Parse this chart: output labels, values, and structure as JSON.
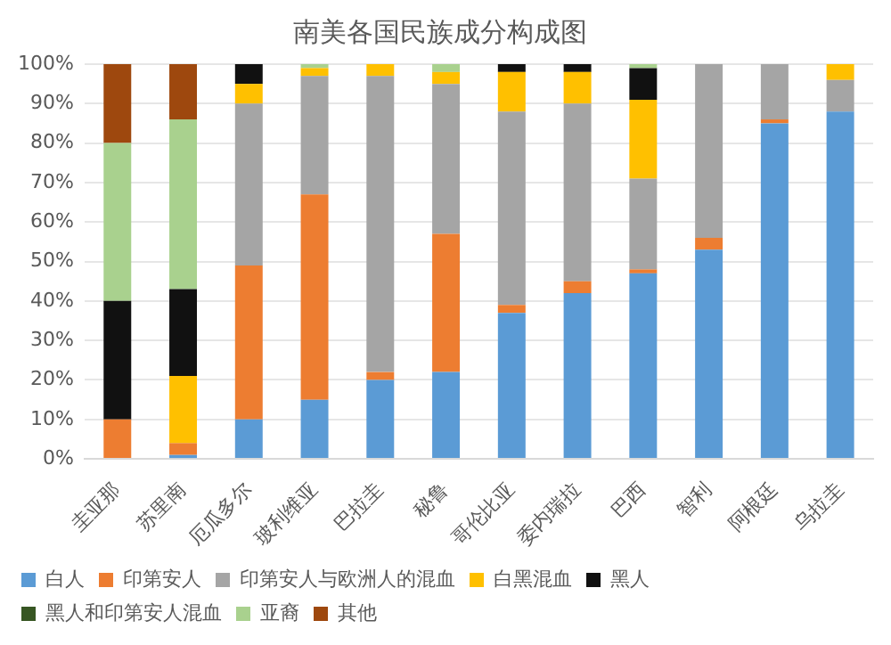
{
  "chart_data": {
    "type": "bar",
    "stacked": true,
    "title": "南美各国民族成分构成图",
    "categories": [
      "圭亚那",
      "苏里南",
      "厄瓜多尔",
      "玻利维亚",
      "巴拉圭",
      "秘鲁",
      "哥伦比亚",
      "委内瑞拉",
      "巴西",
      "智利",
      "阿根廷",
      "乌拉圭"
    ],
    "series": [
      {
        "name": "白人",
        "color": "#5b9bd5",
        "values": [
          0,
          1,
          10,
          15,
          20,
          22,
          37,
          42,
          47,
          53,
          85,
          88
        ]
      },
      {
        "name": "印第安人",
        "color": "#ed7d31",
        "values": [
          10,
          3,
          39,
          52,
          2,
          35,
          2,
          3,
          1,
          3,
          1,
          0
        ]
      },
      {
        "name": "印第安人与欧洲人的混血",
        "color": "#a5a5a5",
        "values": [
          0,
          0,
          41,
          30,
          75,
          38,
          49,
          45,
          23,
          44,
          14,
          8
        ]
      },
      {
        "name": "白黑混血",
        "color": "#ffc000",
        "values": [
          0,
          17,
          5,
          2,
          3,
          3,
          10,
          8,
          20,
          0,
          0,
          4
        ]
      },
      {
        "name": "黑人",
        "color": "#111111",
        "values": [
          30,
          22,
          5,
          0,
          0,
          0,
          2,
          2,
          8,
          0,
          0,
          0
        ]
      },
      {
        "name": "黑人和印第安人混血",
        "color": "#375623",
        "values": [
          0,
          0,
          0,
          0,
          0,
          0,
          0,
          0,
          0,
          0,
          0,
          0
        ]
      },
      {
        "name": "亚裔",
        "color": "#a9d18e",
        "values": [
          40,
          43,
          0,
          1,
          0,
          2,
          0,
          0,
          1,
          0,
          0,
          0
        ]
      },
      {
        "name": "其他",
        "color": "#9e480e",
        "values": [
          20,
          14,
          0,
          0,
          0,
          0,
          0,
          0,
          0,
          0,
          0,
          0
        ]
      }
    ],
    "ylim": [
      0,
      100
    ],
    "yticks": [
      {
        "value": 0,
        "label": "0%"
      },
      {
        "value": 10,
        "label": "10%"
      },
      {
        "value": 20,
        "label": "20%"
      },
      {
        "value": 30,
        "label": "30%"
      },
      {
        "value": 40,
        "label": "40%"
      },
      {
        "value": 50,
        "label": "50%"
      },
      {
        "value": 60,
        "label": "60%"
      },
      {
        "value": 70,
        "label": "70%"
      },
      {
        "value": 80,
        "label": "80%"
      },
      {
        "value": 90,
        "label": "90%"
      },
      {
        "value": 100,
        "label": "100%"
      }
    ],
    "grid": "y",
    "legend": "bottom"
  }
}
